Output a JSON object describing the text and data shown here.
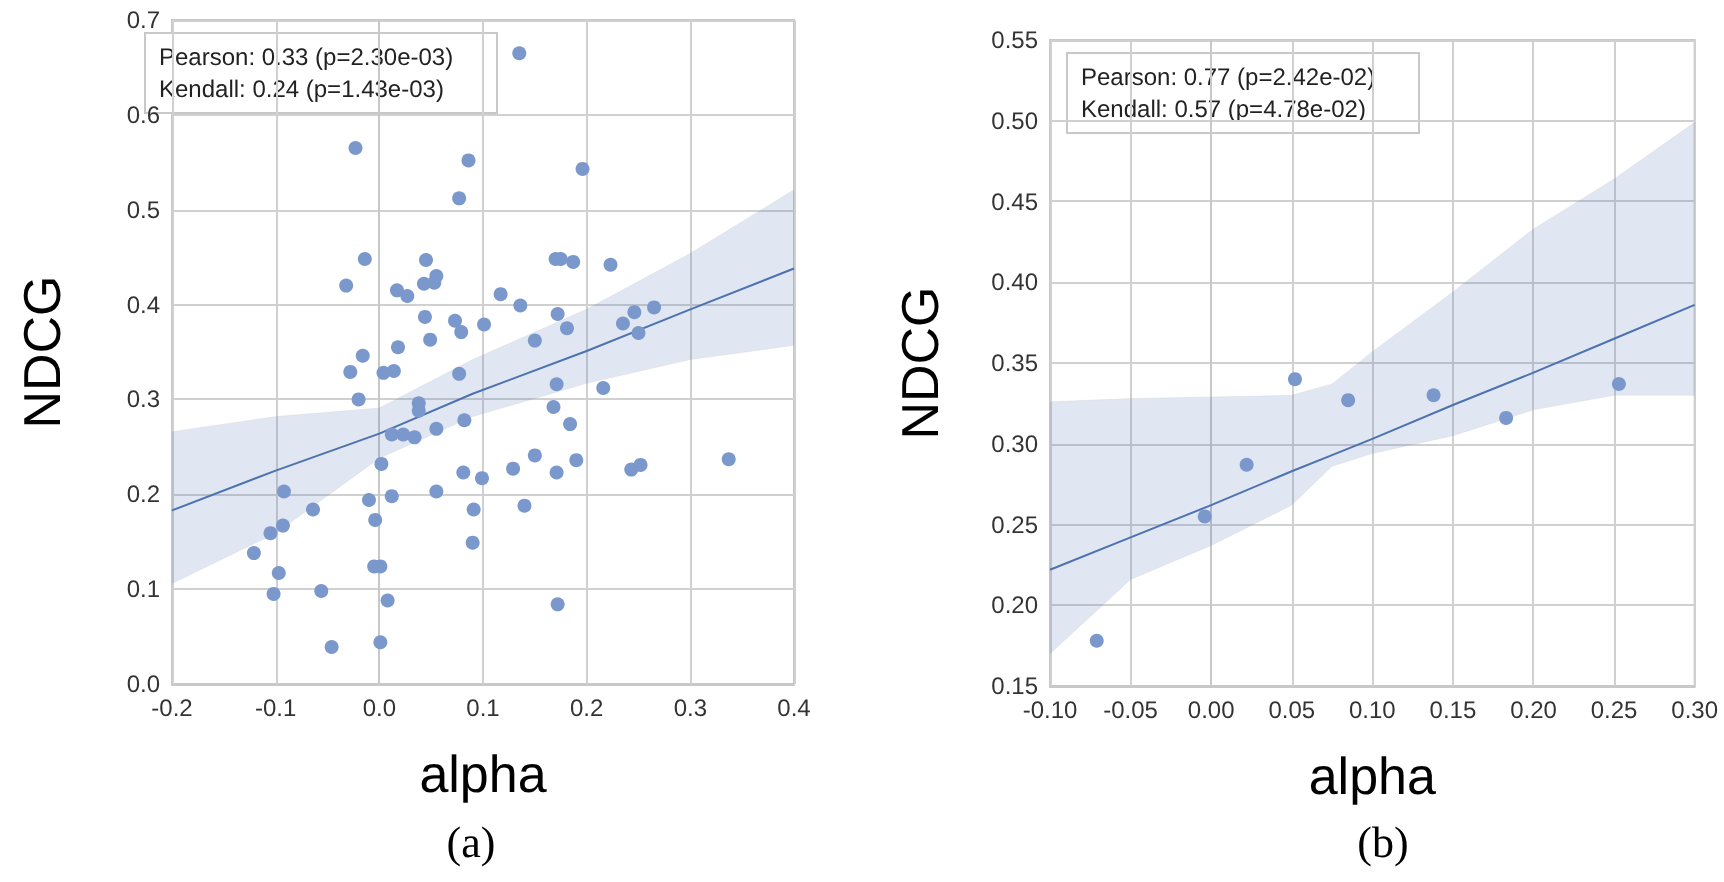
{
  "chart_data": [
    {
      "type": "scatter",
      "title": "(a)",
      "xlabel": "alpha",
      "ylabel": "NDCG",
      "annotations": [
        "Pearson: 0.33 (p=2.30e-03)",
        "Kendall: 0.24 (p=1.43e-03)"
      ],
      "xlim": [
        -0.2,
        0.4
      ],
      "xticks": [
        -0.2,
        -0.1,
        {
          "value": 0,
          "label": "0.0"
        },
        0.1,
        0.2,
        0.3,
        0.4
      ],
      "ylim": [
        0,
        0.7
      ],
      "yticks": [
        {
          "value": 0,
          "label": "0.0"
        },
        0.1,
        0.2,
        0.3,
        0.4,
        0.5,
        0.6,
        0.7
      ],
      "grid": true,
      "series": [
        {
          "marker": "circle",
          "color": "#7b98cc",
          "x": [
            -0.023,
            0.086,
            0.077,
            -0.014,
            0.045,
            -0.032,
            0.017,
            0.027,
            0.043,
            0.053,
            0.055,
            0.044,
            0.073,
            0.079,
            0.101,
            0.049,
            0.018,
            -0.016,
            -0.028,
            0.004,
            0.014,
            0.077,
            -0.02,
            0.038,
            0.038,
            0.082,
            0.055,
            0.012,
            0.023,
            0.034,
            0.002,
            -0.092,
            -0.01,
            0.012,
            0.055,
            0.081,
            0.099,
            -0.064,
            -0.004,
            0.091,
            -0.105,
            -0.093,
            -0.121,
            0.09,
            -0.097,
            -0.005,
            0.001,
            -0.102,
            -0.056,
            0.008,
            -0.046,
            0.001,
            0.135,
            0.196,
            0.17,
            0.175,
            0.187,
            0.223,
            0.117,
            0.136,
            0.172,
            0.181,
            0.15,
            0.235,
            0.246,
            0.25,
            0.265,
            0.171,
            0.216,
            0.168,
            0.184,
            0.15,
            0.129,
            0.171,
            0.19,
            0.243,
            0.252,
            0.337,
            0.14,
            0.172
          ],
          "values": [
            0.565,
            0.552,
            0.512,
            0.448,
            0.447,
            0.42,
            0.415,
            0.409,
            0.422,
            0.423,
            0.43,
            0.387,
            0.383,
            0.371,
            0.379,
            0.363,
            0.355,
            0.346,
            0.329,
            0.328,
            0.33,
            0.327,
            0.3,
            0.296,
            0.288,
            0.278,
            0.269,
            0.263,
            0.263,
            0.26,
            0.232,
            0.203,
            0.194,
            0.198,
            0.203,
            0.223,
            0.217,
            0.184,
            0.173,
            0.184,
            0.159,
            0.167,
            0.138,
            0.149,
            0.117,
            0.124,
            0.124,
            0.095,
            0.098,
            0.088,
            0.039,
            0.044,
            0.665,
            0.543,
            0.448,
            0.448,
            0.445,
            0.442,
            0.411,
            0.399,
            0.39,
            0.375,
            0.362,
            0.38,
            0.392,
            0.37,
            0.397,
            0.316,
            0.312,
            0.292,
            0.274,
            0.241,
            0.227,
            0.223,
            0.236,
            0.226,
            0.231,
            0.237,
            0.188,
            0.084
          ]
        },
        {
          "type": "line",
          "marker": "none",
          "color": "#4c72b0",
          "x": [
            -0.2,
            -0.1,
            0,
            0.09,
            0.2,
            0.3,
            0.4
          ],
          "values": [
            0.183,
            0.225,
            0.264,
            0.306,
            0.351,
            0.395,
            0.438
          ],
          "lower": [
            0.106,
            0.159,
            0.238,
            0.282,
            0.317,
            0.342,
            0.357
          ],
          "upper": [
            0.266,
            0.282,
            0.291,
            0.342,
            0.395,
            0.454,
            0.521
          ]
        }
      ]
    },
    {
      "type": "scatter",
      "title": "(b)",
      "xlabel": "alpha",
      "ylabel": "NDCG",
      "annotations": [
        "Pearson: 0.77 (p=2.42e-02)",
        "Kendall: 0.57 (p=4.78e-02)"
      ],
      "xlim": [
        -0.1,
        0.3
      ],
      "xticks": [
        {
          "value": -0.1,
          "label": "-0.10"
        },
        -0.05,
        {
          "value": 0,
          "label": "0.00"
        },
        0.05,
        {
          "value": 0.1,
          "label": "0.10"
        },
        0.15,
        {
          "value": 0.2,
          "label": "0.20"
        },
        0.25,
        {
          "value": 0.3,
          "label": "0.30"
        }
      ],
      "ylim": [
        0.15,
        0.55
      ],
      "yticks": [
        0.15,
        {
          "value": 0.2,
          "label": "0.20"
        },
        0.25,
        {
          "value": 0.3,
          "label": "0.30"
        },
        0.35,
        {
          "value": 0.4,
          "label": "0.40"
        },
        0.45,
        {
          "value": 0.5,
          "label": "0.50"
        },
        0.55
      ],
      "grid": true,
      "series": [
        {
          "marker": "circle",
          "color": "#7b98cc",
          "x": [
            -0.071,
            -0.004,
            0.022,
            0.052,
            0.085,
            0.138,
            0.183,
            0.253
          ],
          "values": [
            0.178,
            0.255,
            0.287,
            0.34,
            0.327,
            0.33,
            0.316,
            0.337
          ]
        },
        {
          "type": "line",
          "marker": "none",
          "color": "#4c72b0",
          "x": [
            -0.1,
            -0.05,
            0,
            0.05,
            0.075,
            0.1,
            0.15,
            0.2,
            0.25,
            0.3
          ],
          "values": [
            0.222,
            0.242,
            0.262,
            0.283,
            0.293,
            0.303,
            0.324,
            0.344,
            0.365,
            0.386
          ],
          "lower": [
            0.17,
            0.216,
            0.237,
            0.262,
            0.286,
            0.294,
            0.305,
            0.321,
            0.33,
            0.33
          ],
          "upper": [
            0.326,
            0.328,
            0.329,
            0.33,
            0.337,
            0.357,
            0.394,
            0.433,
            0.464,
            0.499
          ]
        }
      ]
    }
  ]
}
